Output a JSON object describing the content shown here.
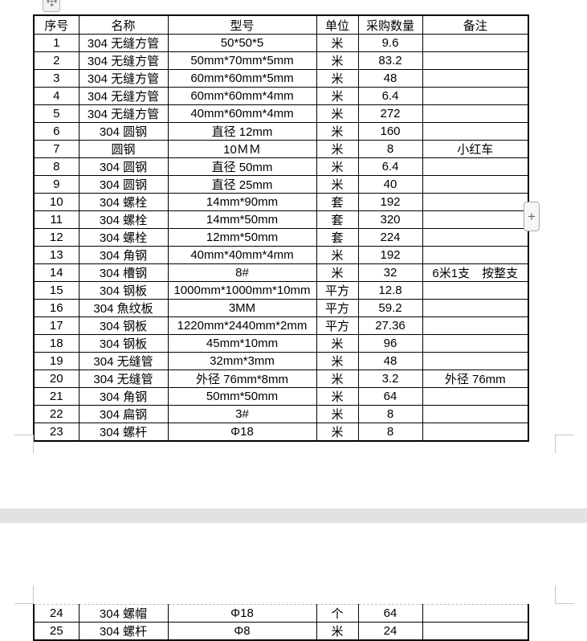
{
  "table": {
    "headers": [
      "序号",
      "名称",
      "型号",
      "单位",
      "采购数量",
      "备注"
    ],
    "page1_rows": [
      [
        "1",
        "304 无缝方管",
        "50*50*5",
        "米",
        "9.6",
        ""
      ],
      [
        "2",
        "304 无缝方管",
        "50mm*70mm*5mm",
        "米",
        "83.2",
        ""
      ],
      [
        "3",
        "304 无缝方管",
        "60mm*60mm*5mm",
        "米",
        "48",
        ""
      ],
      [
        "4",
        "304 无缝方管",
        "60mm*60mm*4mm",
        "米",
        "6.4",
        ""
      ],
      [
        "5",
        "304 无缝方管",
        "40mm*60mm*4mm",
        "米",
        "272",
        ""
      ],
      [
        "6",
        "304 圆钢",
        "直径 12mm",
        "米",
        "160",
        ""
      ],
      [
        "7",
        "圆钢",
        "10ＭＭ",
        "米",
        "8",
        "小红车"
      ],
      [
        "8",
        "304 圆钢",
        "直径 50mm",
        "米",
        "6.4",
        ""
      ],
      [
        "9",
        "304 圆钢",
        "直径 25mm",
        "米",
        "40",
        ""
      ],
      [
        "10",
        "304 螺栓",
        "14mm*90mm",
        "套",
        "192",
        ""
      ],
      [
        "11",
        "304 螺栓",
        "14mm*50mm",
        "套",
        "320",
        ""
      ],
      [
        "12",
        "304 螺栓",
        "12mm*50mm",
        "套",
        "224",
        ""
      ],
      [
        "13",
        "304 角钢",
        "40mm*40mm*4mm",
        "米",
        "192",
        ""
      ],
      [
        "14",
        "304 槽钢",
        "8#",
        "米",
        "32",
        "6米1支　按整支"
      ],
      [
        "15",
        "304 钢板",
        "1000mm*1000mm*10mm",
        "平方",
        "12.8",
        ""
      ],
      [
        "16",
        "304 魚纹板",
        "3MM",
        "平方",
        "59.2",
        ""
      ],
      [
        "17",
        "304 钢板",
        "1220mm*2440mm*2mm",
        "平方",
        "27.36",
        ""
      ],
      [
        "18",
        "304 钢板",
        "45mm*10mm",
        "米",
        "96",
        ""
      ],
      [
        "19",
        "304 无缝管",
        "32mm*3mm",
        "米",
        "48",
        ""
      ],
      [
        "20",
        "304 无缝管",
        "外径 76mm*8mm",
        "米",
        "3.2",
        "外径 76mm"
      ],
      [
        "21",
        "304 角钢",
        "50mm*50mm",
        "米",
        "64",
        ""
      ],
      [
        "22",
        "304 扁钢",
        "3#",
        "米",
        "8",
        ""
      ],
      [
        "23",
        "304 螺杆",
        "Φ18",
        "米",
        "8",
        ""
      ]
    ],
    "page2_rows": [
      [
        "24",
        "304 螺帽",
        "Φ18",
        "个",
        "64",
        ""
      ],
      [
        "25",
        "304 螺杆",
        "Φ8",
        "米",
        "24",
        ""
      ]
    ]
  },
  "controls": {
    "insert_button_label": "+"
  },
  "colors": {
    "table_border": "#000000",
    "dashed_continuation_border": "#bfbfbf",
    "page_gap_band": "#e1e2e4",
    "margin_corner_mark": "#c4c6c9",
    "plus_button_border": "#ababab"
  },
  "icons": {
    "move_handle": "move-icon",
    "insert": "plus-icon"
  }
}
